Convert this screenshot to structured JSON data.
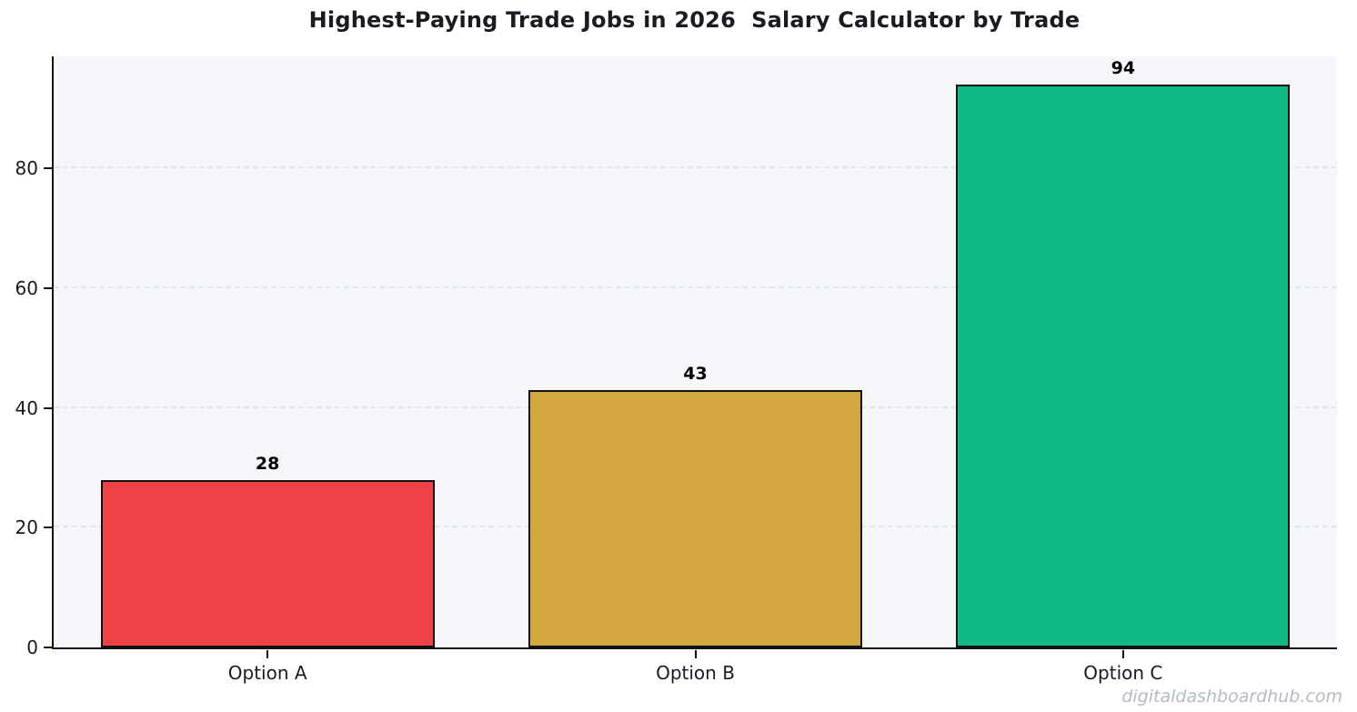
{
  "watermark": "digitaldashboardhub.com",
  "colors": {
    "plot_background": "#f5f7fa",
    "figure_background": "#ffffff",
    "gridline": "#e2e5ea",
    "axis_spine": "#111111",
    "title_text": "#1a1a22",
    "tick_text": "#1a1a22",
    "watermark_text": "#b4bac4"
  },
  "chart_data": {
    "type": "bar",
    "title": "Highest-Paying Trade Jobs in 2026  Salary Calculator by Trade",
    "categories": [
      "Option A",
      "Option B",
      "Option C"
    ],
    "values": [
      28,
      43,
      94
    ],
    "bar_colors": [
      "#ee4346",
      "#d2a83e",
      "#10b884"
    ],
    "bar_edge_color": "#111111",
    "bar_width_fraction": 0.78,
    "xlabel": "",
    "ylabel": "",
    "yticks": [
      0,
      20,
      40,
      60,
      80
    ],
    "ylim": [
      0,
      98.7
    ],
    "grid": "horizontal-dashed",
    "legend": "none",
    "value_labels_shown": true
  }
}
